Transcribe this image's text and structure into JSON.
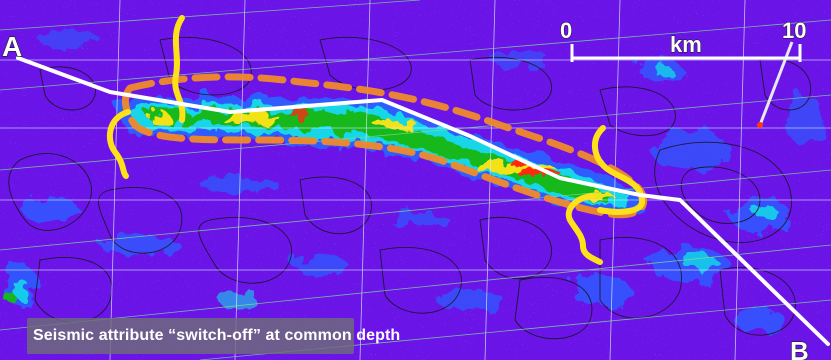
{
  "map": {
    "endpoint_start_label": "A",
    "endpoint_end_label": "B",
    "caption": "Seismic attribute “switch-off” at common depth",
    "scale_bar": {
      "min_label": "0",
      "max_label": "10",
      "unit_label": "km"
    },
    "colors": {
      "background": "#6a14e8",
      "low_anomaly": "#2f5bff",
      "mid_anomaly": "#14d6e8",
      "high_anomaly": "#12b81c",
      "peak_anomaly": "#ff2a10",
      "dashed_outline": "#f08a2a",
      "yellow_boundary": "#ffe11a",
      "profile_line": "#ffffff",
      "contours": "#151515",
      "grid": "#7fe08f"
    }
  }
}
